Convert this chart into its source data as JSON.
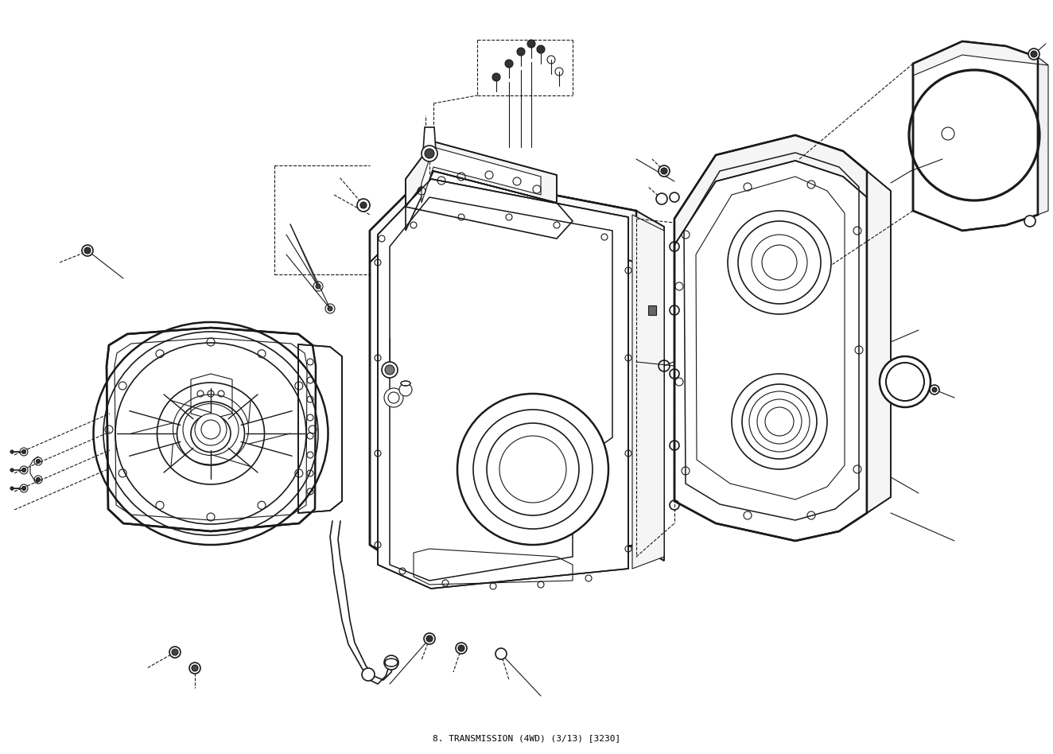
{
  "background_color": "#ffffff",
  "line_color": "#1a1a1a",
  "figsize": [
    13.24,
    9.48
  ],
  "dpi": 100,
  "title": "8. TRANSMISSION (4WD) (3/13) [3230]",
  "lw_thin": 0.8,
  "lw_med": 1.2,
  "lw_thick": 1.8
}
